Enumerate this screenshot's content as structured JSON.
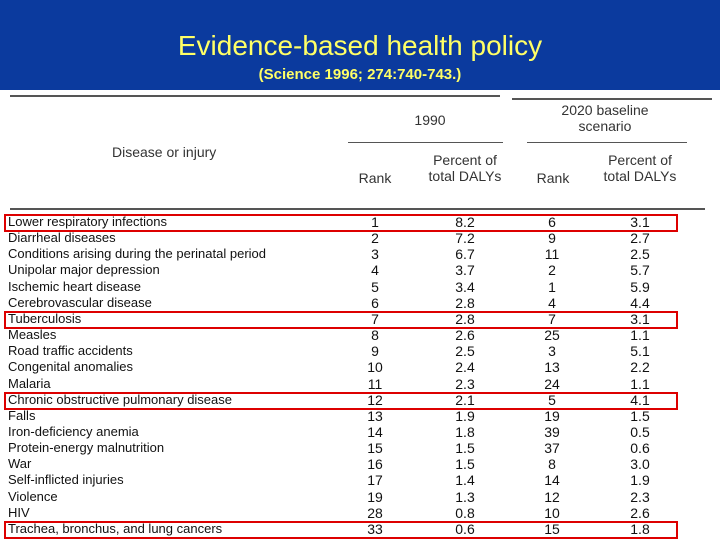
{
  "slide": {
    "title": "Evidence-based health policy",
    "subtitle": "(Science 1996; 274:740-743.)"
  },
  "table": {
    "header": {
      "disease": "Disease or injury",
      "period_1990": "1990",
      "period_2020": "2020 baseline scenario",
      "rank": "Rank",
      "percent": "Percent of total DALYs"
    },
    "rows": [
      {
        "disease": "Lower respiratory infections",
        "rank_1990": "1",
        "pct_1990": "8.2",
        "rank_2020": "6",
        "pct_2020": "3.1",
        "highlighted": true
      },
      {
        "disease": "Diarrheal diseases",
        "rank_1990": "2",
        "pct_1990": "7.2",
        "rank_2020": "9",
        "pct_2020": "2.7",
        "highlighted": false
      },
      {
        "disease": "Conditions arising during the perinatal period",
        "rank_1990": "3",
        "pct_1990": "6.7",
        "rank_2020": "11",
        "pct_2020": "2.5",
        "highlighted": false
      },
      {
        "disease": "Unipolar major depression",
        "rank_1990": "4",
        "pct_1990": "3.7",
        "rank_2020": "2",
        "pct_2020": "5.7",
        "highlighted": false
      },
      {
        "disease": "Ischemic heart disease",
        "rank_1990": "5",
        "pct_1990": "3.4",
        "rank_2020": "1",
        "pct_2020": "5.9",
        "highlighted": false
      },
      {
        "disease": "Cerebrovascular disease",
        "rank_1990": "6",
        "pct_1990": "2.8",
        "rank_2020": "4",
        "pct_2020": "4.4",
        "highlighted": false
      },
      {
        "disease": "Tuberculosis",
        "rank_1990": "7",
        "pct_1990": "2.8",
        "rank_2020": "7",
        "pct_2020": "3.1",
        "highlighted": true
      },
      {
        "disease": "Measles",
        "rank_1990": "8",
        "pct_1990": "2.6",
        "rank_2020": "25",
        "pct_2020": "1.1",
        "highlighted": false
      },
      {
        "disease": "Road traffic accidents",
        "rank_1990": "9",
        "pct_1990": "2.5",
        "rank_2020": "3",
        "pct_2020": "5.1",
        "highlighted": false
      },
      {
        "disease": "Congenital anomalies",
        "rank_1990": "10",
        "pct_1990": "2.4",
        "rank_2020": "13",
        "pct_2020": "2.2",
        "highlighted": false
      },
      {
        "disease": "Malaria",
        "rank_1990": "11",
        "pct_1990": "2.3",
        "rank_2020": "24",
        "pct_2020": "1.1",
        "highlighted": false
      },
      {
        "disease": "Chronic obstructive pulmonary disease",
        "rank_1990": "12",
        "pct_1990": "2.1",
        "rank_2020": "5",
        "pct_2020": "4.1",
        "highlighted": true
      },
      {
        "disease": "Falls",
        "rank_1990": "13",
        "pct_1990": "1.9",
        "rank_2020": "19",
        "pct_2020": "1.5",
        "highlighted": false
      },
      {
        "disease": "Iron-deficiency anemia",
        "rank_1990": "14",
        "pct_1990": "1.8",
        "rank_2020": "39",
        "pct_2020": "0.5",
        "highlighted": false
      },
      {
        "disease": "Protein-energy malnutrition",
        "rank_1990": "15",
        "pct_1990": "1.5",
        "rank_2020": "37",
        "pct_2020": "0.6",
        "highlighted": false
      },
      {
        "disease": "War",
        "rank_1990": "16",
        "pct_1990": "1.5",
        "rank_2020": "8",
        "pct_2020": "3.0",
        "highlighted": false
      },
      {
        "disease": "Self-inflicted injuries",
        "rank_1990": "17",
        "pct_1990": "1.4",
        "rank_2020": "14",
        "pct_2020": "1.9",
        "highlighted": false
      },
      {
        "disease": "Violence",
        "rank_1990": "19",
        "pct_1990": "1.3",
        "rank_2020": "12",
        "pct_2020": "2.3",
        "highlighted": false
      },
      {
        "disease": "HIV",
        "rank_1990": "28",
        "pct_1990": "0.8",
        "rank_2020": "10",
        "pct_2020": "2.6",
        "highlighted": false
      },
      {
        "disease": "Trachea, bronchus, and lung cancers",
        "rank_1990": "33",
        "pct_1990": "0.6",
        "rank_2020": "15",
        "pct_2020": "1.8",
        "highlighted": true
      }
    ]
  },
  "colors": {
    "header_bg": "#0b3a9e",
    "title_text": "#ffff66",
    "highlight_box": "#dd0000"
  }
}
